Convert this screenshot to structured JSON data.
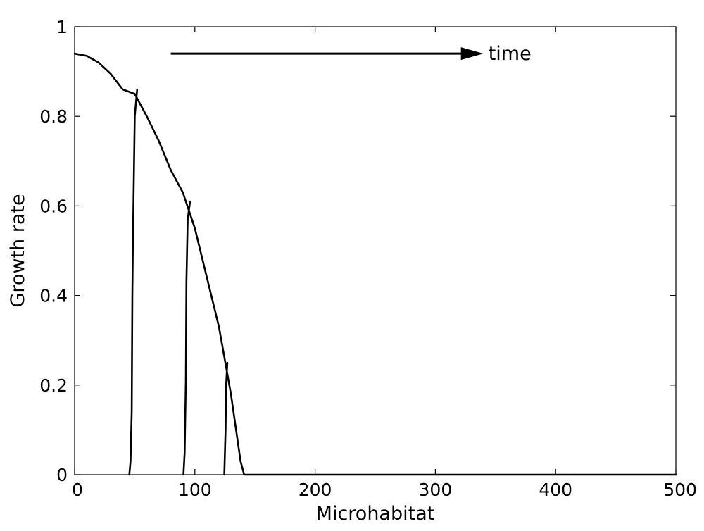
{
  "chart_data": {
    "type": "line",
    "title": "",
    "xlabel": "Microhabitat",
    "ylabel": "Growth rate",
    "xlim": [
      0,
      500
    ],
    "ylim": [
      0,
      1
    ],
    "xticks": [
      0,
      100,
      200,
      300,
      400,
      500
    ],
    "xtick_labels": [
      "0",
      "100",
      "200",
      "300",
      "400",
      "500"
    ],
    "yticks": [
      0,
      0.2,
      0.4,
      0.6,
      0.8,
      1
    ],
    "ytick_labels": [
      "0",
      "0.2",
      "0.4",
      "0.6",
      "0.8",
      "1"
    ],
    "grid": false,
    "legend": "none",
    "line_color": "#000000",
    "series": [
      {
        "x": [
          0,
          10,
          20,
          30,
          40,
          50,
          60,
          70,
          80,
          90,
          100,
          110,
          120,
          130,
          138,
          141,
          200,
          300,
          400,
          500
        ],
        "y": [
          0.94,
          0.935,
          0.92,
          0.895,
          0.86,
          0.85,
          0.8,
          0.745,
          0.68,
          0.63,
          0.55,
          0.44,
          0.33,
          0.18,
          0.03,
          0,
          0,
          0,
          0,
          0
        ]
      },
      {
        "x": [
          45.5,
          46.5,
          47.5,
          48,
          48.5,
          50,
          52
        ],
        "y": [
          0,
          0.03,
          0.14,
          0.4,
          0.52,
          0.8,
          0.86
        ]
      },
      {
        "x": [
          90.5,
          91.5,
          92.5,
          93,
          94,
          96
        ],
        "y": [
          0,
          0.05,
          0.21,
          0.43,
          0.57,
          0.61
        ]
      },
      {
        "x": [
          124.5,
          125,
          125.5,
          126,
          127
        ],
        "y": [
          0,
          0.05,
          0.1,
          0.2,
          0.25
        ]
      }
    ],
    "annotation": {
      "text": "time",
      "arrow_from": [
        80,
        0.94
      ],
      "arrow_to": [
        340,
        0.94
      ]
    }
  }
}
